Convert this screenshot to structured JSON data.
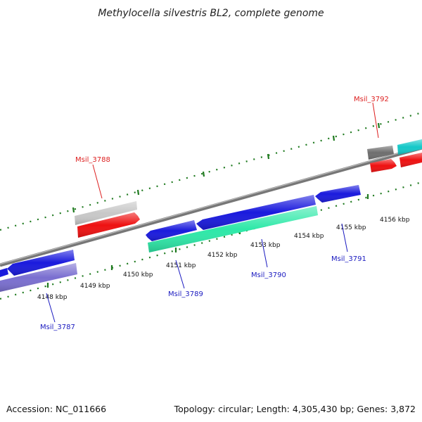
{
  "title": "Methylocella silvestris BL2, complete genome",
  "footer": {
    "accession": "Accession: NC_011666",
    "topology": "Topology: circular; Length: 4,305,430 bp; Genes: 3,872"
  },
  "colors": {
    "backbone": "#8c8c8c",
    "tick_dots": "#1f7a1f",
    "label_red": "#dd1f1f",
    "label_blue": "#1a1ac0",
    "gene_blue": "#1a1add",
    "gene_red": "#ee1111",
    "gene_lightgray": "#c8c8c8",
    "gene_darkgray": "#6e6e6e",
    "gene_cyan": "#14c8c8",
    "gene_mint": "#2ee8a8",
    "gene_lavender": "#7a6fd0"
  },
  "kbp_ticks": [
    "4148 kbp",
    "4149 kbp",
    "4150 kbp",
    "4151 kbp",
    "4152 kbp",
    "4153 kbp",
    "4154 kbp",
    "4155 kbp",
    "4156 kbp"
  ],
  "gene_labels": [
    {
      "name": "Msil_3788",
      "color": "red"
    },
    {
      "name": "Msil_3792",
      "color": "red"
    },
    {
      "name": "Msil_3787",
      "color": "blue"
    },
    {
      "name": "Msil_3789",
      "color": "blue"
    },
    {
      "name": "Msil_3790",
      "color": "blue"
    },
    {
      "name": "Msil_3791",
      "color": "blue"
    }
  ]
}
